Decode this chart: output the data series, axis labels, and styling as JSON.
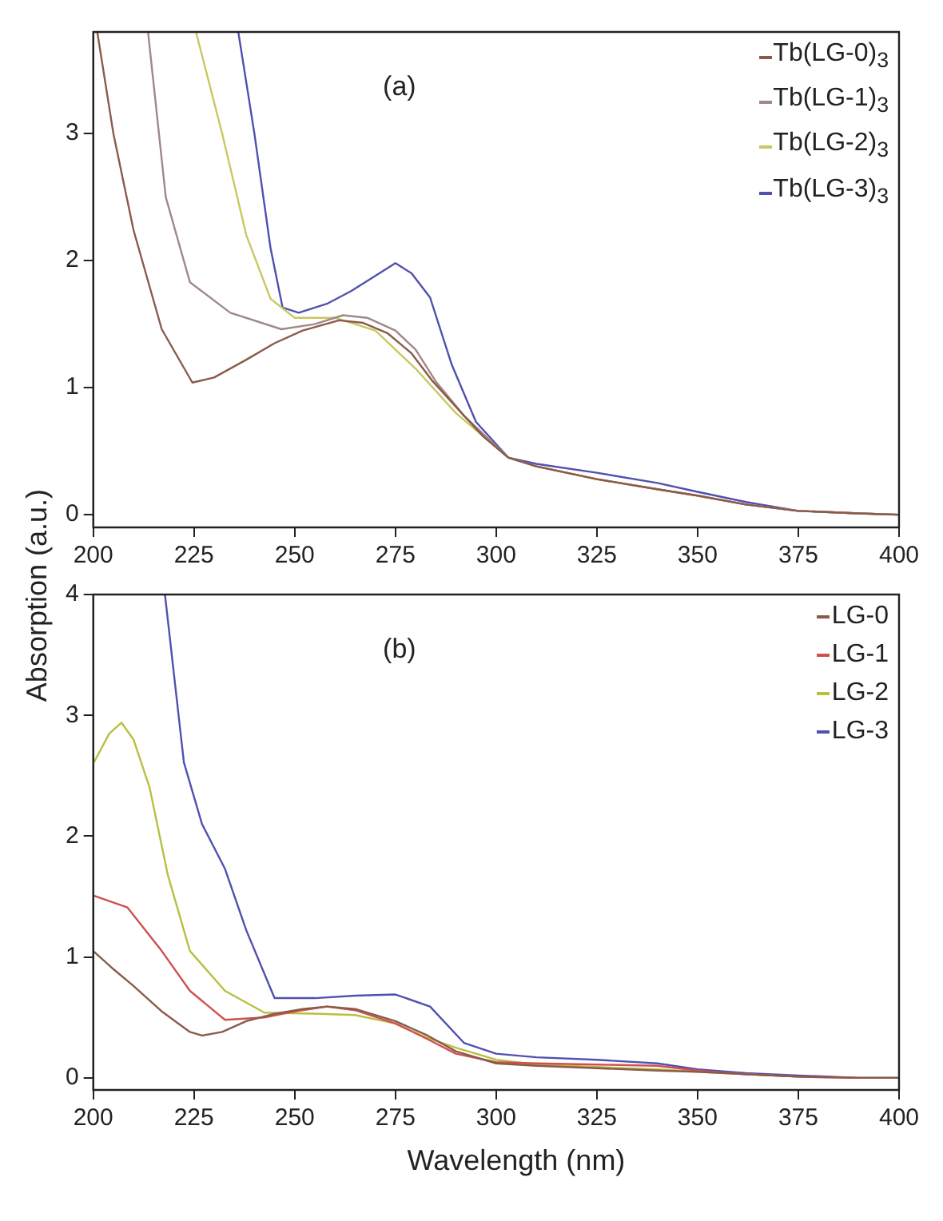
{
  "chart_data": [
    {
      "type": "line",
      "annotations": [
        "(a)"
      ],
      "ylabel": "Absorption (a.u.)",
      "xlim": [
        200,
        400
      ],
      "xticks": [
        200,
        225,
        250,
        275,
        300,
        325,
        350,
        375,
        400
      ],
      "ylim": [
        -0.1,
        3.8
      ],
      "yticks": [
        0,
        1,
        2,
        3
      ],
      "grid": false,
      "legend": "top right",
      "marker": "none",
      "line_style": "solid",
      "series": [
        {
          "name": "Tb(LG-0)$_{3}$",
          "color": "#8b5a4a",
          "x": [
            201,
            205,
            210,
            217,
            224.6,
            230,
            238,
            245,
            252,
            261,
            267,
            273,
            279,
            284,
            288,
            292,
            297,
            303,
            310,
            325,
            340,
            350,
            362,
            375,
            390,
            400
          ],
          "values": [
            3.8,
            3.0,
            2.24,
            1.46,
            1.04,
            1.08,
            1.22,
            1.35,
            1.45,
            1.53,
            1.51,
            1.43,
            1.27,
            1.06,
            0.92,
            0.78,
            0.61,
            0.45,
            0.38,
            0.28,
            0.2,
            0.15,
            0.08,
            0.03,
            0.01,
            0
          ]
        },
        {
          "name": "Tb(LG-1)$_{3}$",
          "color": "#a08888",
          "x": [
            213.6,
            218,
            224,
            234,
            246.7,
            255,
            262,
            268,
            275,
            280,
            285,
            292,
            303,
            310,
            325,
            340,
            350,
            362,
            375,
            390,
            400
          ],
          "values": [
            3.8,
            2.5,
            1.83,
            1.59,
            1.46,
            1.5,
            1.57,
            1.55,
            1.45,
            1.3,
            1.05,
            0.78,
            0.45,
            0.38,
            0.28,
            0.2,
            0.15,
            0.08,
            0.03,
            0.01,
            0
          ]
        },
        {
          "name": "Tb(LG-2)$_{3}$",
          "color": "#c8c860",
          "x": [
            225.5,
            232,
            238,
            244,
            250,
            260,
            270,
            280,
            290,
            303,
            310,
            325,
            340,
            350,
            362,
            375,
            390,
            400
          ],
          "values": [
            3.8,
            3.0,
            2.2,
            1.7,
            1.55,
            1.55,
            1.45,
            1.15,
            0.8,
            0.45,
            0.38,
            0.28,
            0.2,
            0.15,
            0.08,
            0.03,
            0.01,
            0
          ]
        },
        {
          "name": "Tb(LG-3)$_{3}$",
          "color": "#5050b0",
          "x": [
            236,
            240,
            244,
            247,
            251,
            258,
            264,
            270,
            275,
            279,
            283.6,
            289,
            295,
            303,
            310,
            325,
            340,
            350,
            362,
            375,
            390,
            400
          ],
          "values": [
            3.8,
            3.0,
            2.1,
            1.63,
            1.59,
            1.66,
            1.76,
            1.88,
            1.98,
            1.9,
            1.71,
            1.18,
            0.73,
            0.45,
            0.4,
            0.33,
            0.25,
            0.18,
            0.1,
            0.03,
            0.01,
            0
          ]
        }
      ]
    },
    {
      "type": "line",
      "annotations": [
        "(b)"
      ],
      "xlabel": "Wavelength (nm)",
      "xlim": [
        200,
        400
      ],
      "xticks": [
        200,
        225,
        250,
        275,
        300,
        325,
        350,
        375,
        400
      ],
      "ylim": [
        -0.1,
        4
      ],
      "yticks": [
        0,
        1,
        2,
        3,
        4
      ],
      "grid": false,
      "legend": "top right",
      "marker": "none",
      "line_style": "solid",
      "series": [
        {
          "name": "LG-0",
          "color": "#8b5a4a",
          "x": [
            200,
            205,
            210,
            217,
            224,
            227,
            232,
            238,
            245,
            252,
            258,
            265,
            275,
            283,
            290,
            300,
            310,
            325,
            340,
            350,
            362,
            375,
            390,
            400
          ],
          "values": [
            1.05,
            0.9,
            0.76,
            0.55,
            0.38,
            0.35,
            0.38,
            0.47,
            0.53,
            0.57,
            0.59,
            0.57,
            0.47,
            0.35,
            0.22,
            0.12,
            0.1,
            0.08,
            0.06,
            0.05,
            0.03,
            0.01,
            0,
            0
          ]
        },
        {
          "name": "LG-1",
          "color": "#d05050",
          "x": [
            200,
            208.5,
            217,
            224,
            232.7,
            242.5,
            250,
            258,
            265,
            275,
            283,
            290,
            300,
            310,
            325,
            340,
            350,
            362,
            375,
            390,
            400
          ],
          "values": [
            1.51,
            1.41,
            1.05,
            0.72,
            0.48,
            0.5,
            0.55,
            0.59,
            0.56,
            0.45,
            0.32,
            0.2,
            0.13,
            0.12,
            0.11,
            0.1,
            0.06,
            0.03,
            0.01,
            0,
            0
          ]
        },
        {
          "name": "LG-2",
          "color": "#b8c040",
          "x": [
            200,
            204,
            207,
            210,
            214,
            218.5,
            224,
            232.7,
            242.5,
            256.5,
            265,
            275,
            283,
            290,
            300,
            310,
            325,
            340,
            350,
            362,
            375
          ],
          "values": [
            2.6,
            2.85,
            2.94,
            2.8,
            2.4,
            1.68,
            1.05,
            0.72,
            0.54,
            0.53,
            0.52,
            0.45,
            0.33,
            0.25,
            0.15,
            0.11,
            0.09,
            0.07,
            0.05,
            0.03,
            0.01
          ]
        },
        {
          "name": "LG-3",
          "color": "#5050b0",
          "x": [
            217.8,
            222.5,
            227,
            232.7,
            238,
            245,
            255,
            265,
            275,
            283.6,
            292,
            300,
            310,
            325,
            340,
            350,
            362,
            375,
            390,
            400
          ],
          "values": [
            4.0,
            2.61,
            2.1,
            1.73,
            1.22,
            0.66,
            0.66,
            0.68,
            0.69,
            0.59,
            0.29,
            0.2,
            0.17,
            0.15,
            0.12,
            0.07,
            0.04,
            0.02,
            0,
            0
          ]
        }
      ]
    }
  ]
}
